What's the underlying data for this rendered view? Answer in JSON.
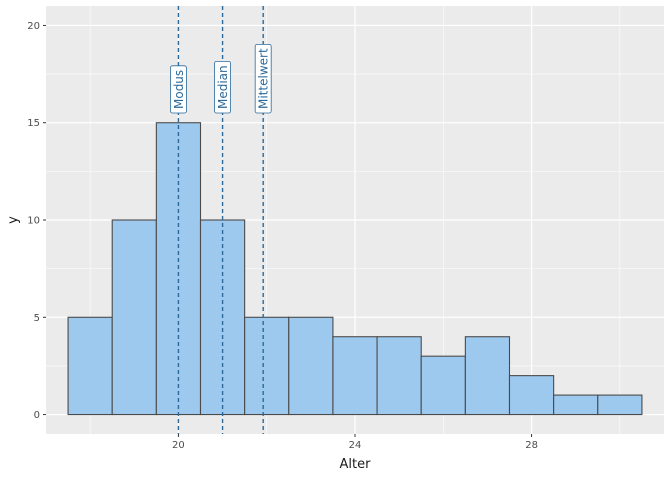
{
  "chart_data": {
    "type": "bar",
    "subtype": "histogram",
    "xlabel": "Alter",
    "ylabel": "y",
    "xlim": [
      17.0,
      31.0
    ],
    "ylim": [
      -1,
      21
    ],
    "x_ticks": [
      20,
      24,
      28
    ],
    "y_ticks": [
      0,
      5,
      10,
      15,
      20
    ],
    "bin_width": 1,
    "bins": [
      {
        "x": 18,
        "count": 5
      },
      {
        "x": 19,
        "count": 10
      },
      {
        "x": 20,
        "count": 15
      },
      {
        "x": 21,
        "count": 10
      },
      {
        "x": 22,
        "count": 5
      },
      {
        "x": 23,
        "count": 5
      },
      {
        "x": 24,
        "count": 4
      },
      {
        "x": 25,
        "count": 4
      },
      {
        "x": 26,
        "count": 3
      },
      {
        "x": 27,
        "count": 4
      },
      {
        "x": 28,
        "count": 2
      },
      {
        "x": 29,
        "count": 1
      },
      {
        "x": 30,
        "count": 1
      }
    ],
    "reference_lines": [
      {
        "label": "Modus",
        "x": 20.0
      },
      {
        "label": "Median",
        "x": 21.0
      },
      {
        "label": "Mittelwert",
        "x": 21.92
      }
    ],
    "grid": true,
    "colors": {
      "bar_fill": "#9ec9ef",
      "bar_stroke": "#4a4a4a",
      "panel_bg": "#ebebeb",
      "grid": "#ffffff",
      "reference_line": "#2b6a9b"
    }
  }
}
